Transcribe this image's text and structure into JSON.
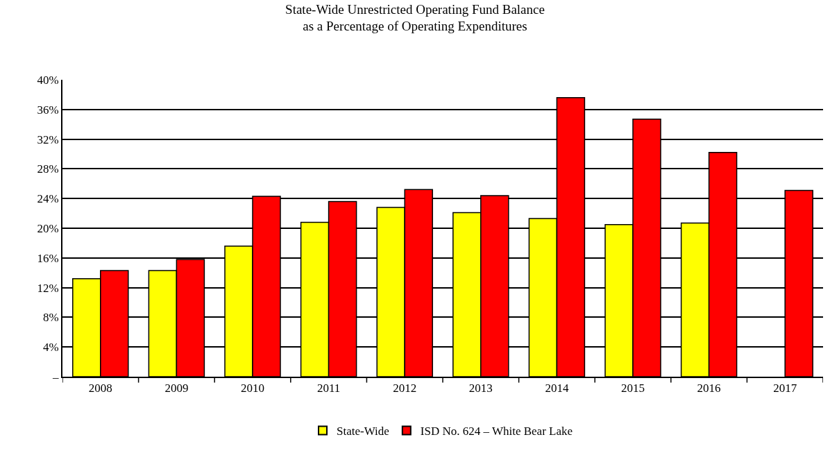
{
  "chart_data": {
    "type": "bar",
    "title": "State-Wide Unrestricted Operating Fund Balance\nas a Percentage of Operating Expenditures",
    "categories": [
      "2008",
      "2009",
      "2010",
      "2011",
      "2012",
      "2013",
      "2014",
      "2015",
      "2016",
      "2017"
    ],
    "series": [
      {
        "name": "State-Wide",
        "color": "#ffff00",
        "values": [
          13.2,
          14.3,
          17.6,
          20.8,
          22.8,
          22.1,
          21.3,
          20.5,
          20.7,
          null
        ]
      },
      {
        "name": "ISD No. 624 – White Bear Lake",
        "color": "#ff0000",
        "values": [
          14.3,
          15.8,
          24.3,
          23.6,
          25.2,
          24.4,
          37.6,
          34.7,
          30.2,
          25.1
        ]
      }
    ],
    "ylim": [
      0,
      40
    ],
    "yticks": [
      {
        "value": 0,
        "label": "–"
      },
      {
        "value": 4,
        "label": "4%"
      },
      {
        "value": 8,
        "label": "8%"
      },
      {
        "value": 12,
        "label": "12%"
      },
      {
        "value": 16,
        "label": "16%"
      },
      {
        "value": 20,
        "label": "20%"
      },
      {
        "value": 24,
        "label": "24%"
      },
      {
        "value": 28,
        "label": "28%"
      },
      {
        "value": 32,
        "label": "32%"
      },
      {
        "value": 36,
        "label": "36%"
      },
      {
        "value": 40,
        "label": "40%"
      }
    ],
    "grid": "y",
    "legend": "bottom"
  }
}
